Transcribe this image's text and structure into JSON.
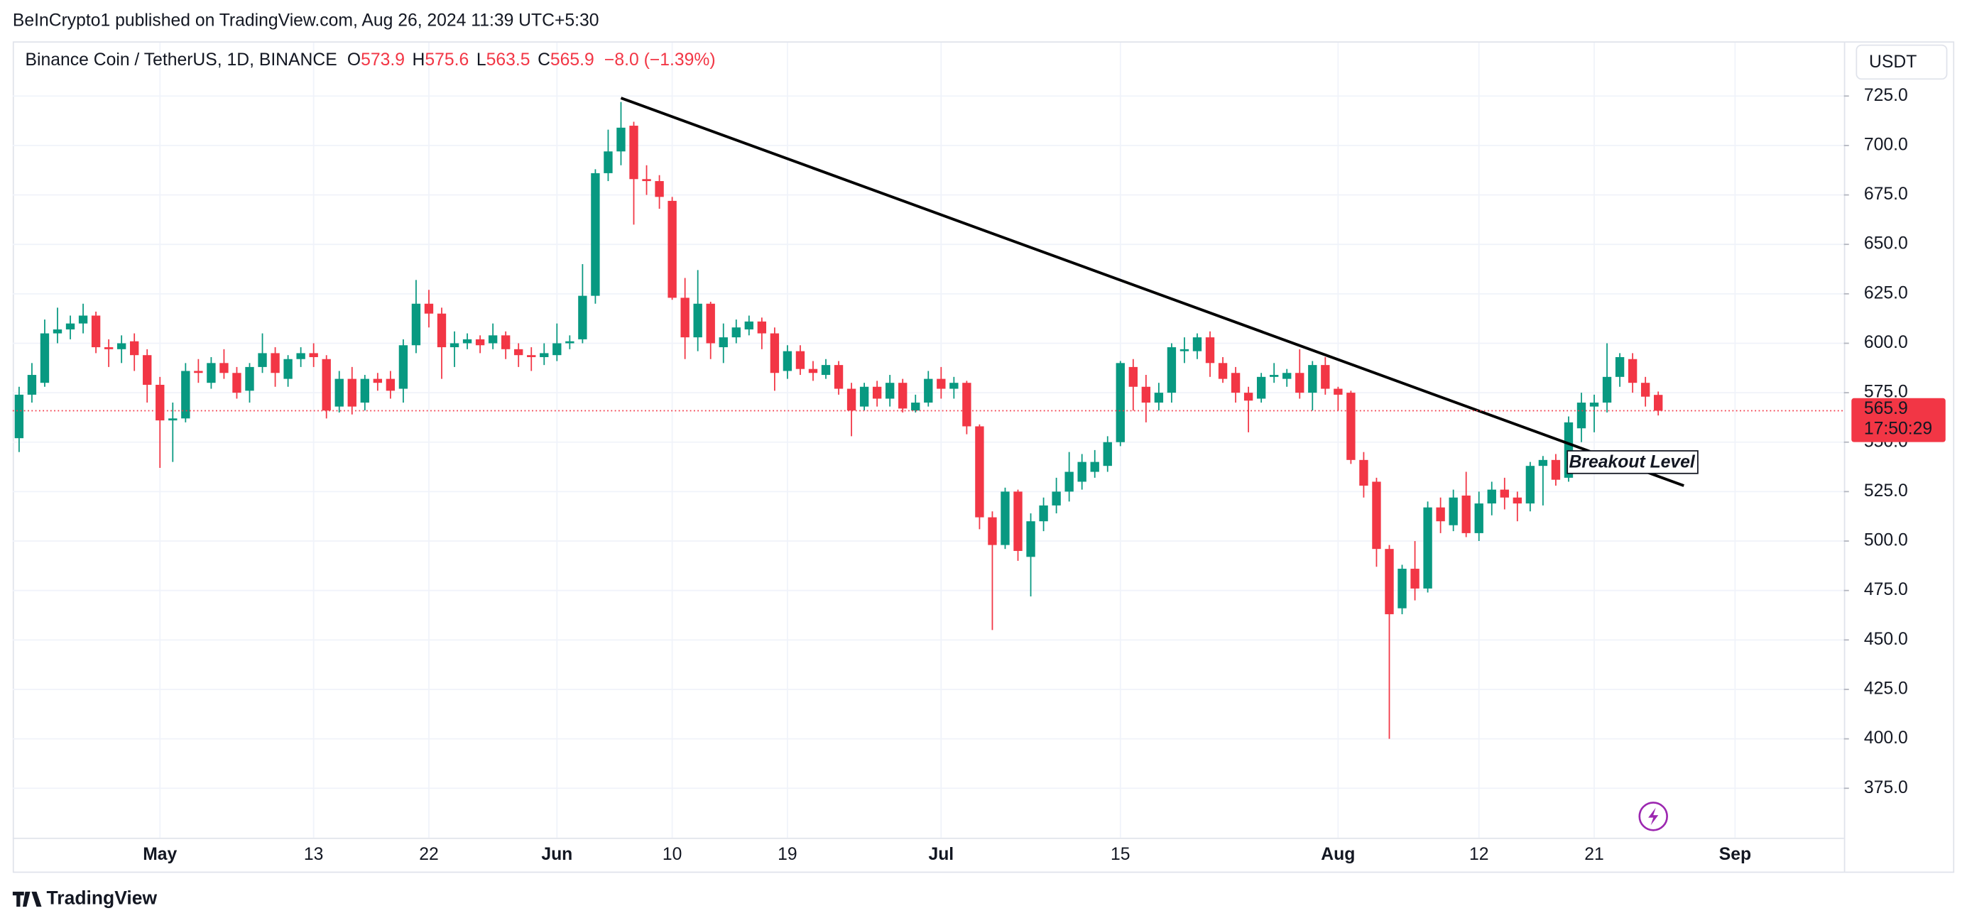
{
  "header": {
    "published": "BeInCrypto1 published on TradingView.com, Aug 26, 2024 11:39 UTC+5:30",
    "currency": "USDT",
    "footer": "TradingView"
  },
  "chart_data": {
    "type": "candlestick",
    "title": "Binance Coin / TetherUS, 1D, BINANCE",
    "ohlc_labels": [
      "O",
      "H",
      "L",
      "C"
    ],
    "change": "−8.0 (−1.39%)",
    "countdown": "17:50:29",
    "up_color": "#089981",
    "down_color": "#f23645",
    "x": [
      "2024-04-20",
      "2024-04-21",
      "2024-04-22",
      "2024-04-23",
      "2024-04-24",
      "2024-04-25",
      "2024-04-26",
      "2024-04-27",
      "2024-04-28",
      "2024-04-29",
      "2024-04-30",
      "2024-05-01",
      "2024-05-02",
      "2024-05-03",
      "2024-05-04",
      "2024-05-05",
      "2024-05-06",
      "2024-05-07",
      "2024-05-08",
      "2024-05-09",
      "2024-05-10",
      "2024-05-11",
      "2024-05-12",
      "2024-05-13",
      "2024-05-14",
      "2024-05-15",
      "2024-05-16",
      "2024-05-17",
      "2024-05-18",
      "2024-05-19",
      "2024-05-20",
      "2024-05-21",
      "2024-05-22",
      "2024-05-23",
      "2024-05-24",
      "2024-05-25",
      "2024-05-26",
      "2024-05-27",
      "2024-05-28",
      "2024-05-29",
      "2024-05-30",
      "2024-05-31",
      "2024-06-01",
      "2024-06-02",
      "2024-06-03",
      "2024-06-04",
      "2024-06-05",
      "2024-06-06",
      "2024-06-07",
      "2024-06-08",
      "2024-06-09",
      "2024-06-10",
      "2024-06-11",
      "2024-06-12",
      "2024-06-13",
      "2024-06-14",
      "2024-06-15",
      "2024-06-16",
      "2024-06-17",
      "2024-06-18",
      "2024-06-19",
      "2024-06-20",
      "2024-06-21",
      "2024-06-22",
      "2024-06-23",
      "2024-06-24",
      "2024-06-25",
      "2024-06-26",
      "2024-06-27",
      "2024-06-28",
      "2024-06-29",
      "2024-06-30",
      "2024-07-01",
      "2024-07-02",
      "2024-07-03",
      "2024-07-04",
      "2024-07-05",
      "2024-07-06",
      "2024-07-07",
      "2024-07-08",
      "2024-07-09",
      "2024-07-10",
      "2024-07-11",
      "2024-07-12",
      "2024-07-13",
      "2024-07-14",
      "2024-07-15",
      "2024-07-16",
      "2024-07-17",
      "2024-07-18",
      "2024-07-19",
      "2024-07-20",
      "2024-07-21",
      "2024-07-22",
      "2024-07-23",
      "2024-07-24",
      "2024-07-25",
      "2024-07-26",
      "2024-07-27",
      "2024-07-28",
      "2024-07-29",
      "2024-07-30",
      "2024-07-31",
      "2024-08-01",
      "2024-08-02",
      "2024-08-03",
      "2024-08-04",
      "2024-08-05",
      "2024-08-06",
      "2024-08-07",
      "2024-08-08",
      "2024-08-09",
      "2024-08-10",
      "2024-08-11",
      "2024-08-12",
      "2024-08-13",
      "2024-08-14",
      "2024-08-15",
      "2024-08-16",
      "2024-08-17",
      "2024-08-18",
      "2024-08-19",
      "2024-08-20",
      "2024-08-21",
      "2024-08-22",
      "2024-08-23",
      "2024-08-24",
      "2024-08-25",
      "2024-08-26"
    ],
    "open": [
      552,
      574,
      580,
      605,
      607,
      610,
      614,
      598,
      597,
      601,
      594,
      579,
      561,
      562,
      586,
      580,
      590,
      585,
      576,
      588,
      595,
      582,
      592,
      595,
      592,
      568,
      582,
      570,
      582,
      582,
      577,
      599,
      620,
      615,
      598,
      600,
      602,
      600,
      604,
      597,
      594,
      593,
      594,
      600,
      602,
      624,
      686,
      697,
      710,
      683,
      682,
      672,
      623,
      603,
      620,
      598,
      603,
      607,
      611,
      605,
      586,
      596,
      587,
      584,
      589,
      577,
      568,
      578,
      572,
      580,
      566,
      570,
      582,
      577,
      580,
      558,
      512,
      498,
      525,
      492,
      510,
      518,
      525,
      530,
      535,
      538,
      550,
      588,
      578,
      570,
      575,
      596,
      596,
      603,
      590,
      585,
      575,
      572,
      583,
      582,
      585,
      575,
      589,
      577,
      575,
      541,
      530,
      496,
      466,
      486,
      476,
      517,
      508,
      523,
      504,
      519,
      526,
      522,
      519,
      538,
      541,
      532,
      557,
      568,
      570,
      583,
      592,
      580,
      573.9
    ],
    "high": [
      578,
      590,
      612,
      618,
      614,
      620,
      616,
      602,
      604,
      605,
      597,
      583,
      570,
      590,
      592,
      593,
      597,
      588,
      590,
      605,
      598,
      594,
      598,
      600,
      594,
      586,
      588,
      584,
      585,
      586,
      602,
      632,
      627,
      618,
      606,
      605,
      604,
      610,
      606,
      600,
      598,
      600,
      610,
      604,
      640,
      688,
      708,
      722,
      712,
      690,
      685,
      674,
      633,
      637,
      621,
      610,
      612,
      614,
      613,
      608,
      599,
      599,
      591,
      592,
      591,
      580,
      580,
      581,
      584,
      582,
      574,
      586,
      588,
      583,
      581,
      559,
      515,
      527,
      526,
      514,
      522,
      532,
      545,
      544,
      546,
      553,
      591,
      592,
      584,
      580,
      600,
      603,
      605,
      606,
      593,
      588,
      578,
      585,
      590,
      587,
      597,
      591,
      593,
      578,
      576,
      545,
      532,
      498,
      488,
      500,
      520,
      522,
      526,
      535,
      525,
      530,
      532,
      525,
      540,
      543,
      544,
      563,
      575,
      574,
      600,
      595,
      595,
      583,
      575.6
    ],
    "low": [
      545,
      570,
      578,
      600,
      602,
      605,
      595,
      588,
      590,
      586,
      570,
      537,
      540,
      560,
      580,
      577,
      582,
      572,
      570,
      585,
      578,
      578,
      588,
      588,
      562,
      565,
      564,
      566,
      576,
      572,
      570,
      595,
      608,
      582,
      588,
      597,
      595,
      597,
      592,
      588,
      586,
      589,
      591,
      597,
      600,
      620,
      682,
      690,
      660,
      675,
      668,
      622,
      592,
      596,
      592,
      590,
      600,
      604,
      597,
      576,
      582,
      584,
      581,
      582,
      574,
      553,
      566,
      568,
      568,
      565,
      565,
      568,
      572,
      572,
      554,
      506,
      455,
      496,
      490,
      472,
      505,
      514,
      520,
      526,
      532,
      535,
      548,
      566,
      560,
      566,
      570,
      590,
      592,
      583,
      580,
      570,
      555,
      570,
      580,
      578,
      572,
      566,
      574,
      566,
      539,
      522,
      487,
      400,
      463,
      470,
      474,
      504,
      505,
      502,
      500,
      513,
      516,
      510,
      515,
      518,
      528,
      530,
      550,
      555,
      565,
      578,
      575,
      568,
      563.5
    ],
    "close": [
      574,
      584,
      605,
      607,
      610,
      614,
      598,
      597,
      600,
      594,
      579,
      561,
      562,
      586,
      585,
      590,
      585,
      575,
      588,
      595,
      585,
      592,
      595,
      593,
      566,
      582,
      568,
      582,
      580,
      576,
      599,
      620,
      615,
      598,
      600,
      602,
      599,
      604,
      597,
      594,
      593,
      595,
      600,
      601,
      624,
      686,
      697,
      709,
      683,
      682,
      674,
      623,
      603,
      620,
      600,
      603,
      608,
      611,
      605,
      585,
      596,
      587,
      585,
      589,
      577,
      566,
      578,
      572,
      580,
      567,
      570,
      582,
      577,
      580,
      558,
      512,
      498,
      525,
      495,
      510,
      518,
      525,
      535,
      540,
      540,
      550,
      590,
      578,
      570,
      575,
      598,
      597,
      603,
      590,
      582,
      575,
      571,
      583,
      584,
      585,
      575,
      589,
      577,
      574,
      541,
      528,
      496,
      463,
      486,
      476,
      517,
      510,
      522,
      504,
      519,
      526,
      522,
      519,
      538,
      541,
      531,
      560,
      570,
      570,
      583,
      593,
      580,
      573,
      565.9
    ],
    "xlim": [
      "2024-04-19T12:00Z",
      "2024-09-09T12:00Z"
    ],
    "xticks": [
      {
        "value": "2024-05-01",
        "label": "May"
      },
      {
        "value": "2024-05-13",
        "label": "13"
      },
      {
        "value": "2024-05-22",
        "label": "22"
      },
      {
        "value": "2024-06-01",
        "label": "Jun"
      },
      {
        "value": "2024-06-10",
        "label": "10"
      },
      {
        "value": "2024-06-19",
        "label": "19"
      },
      {
        "value": "2024-07-01",
        "label": "Jul"
      },
      {
        "value": "2024-07-15",
        "label": "15"
      },
      {
        "value": "2024-08-01",
        "label": "Aug"
      },
      {
        "value": "2024-08-12",
        "label": "12"
      },
      {
        "value": "2024-08-21",
        "label": "21"
      },
      {
        "value": "2024-09-01",
        "label": "Sep"
      }
    ],
    "ylim": [
      350,
      752
    ],
    "yticks": [
      {
        "value": 375,
        "label": "375.0"
      },
      {
        "value": 400,
        "label": "400.0"
      },
      {
        "value": 425,
        "label": "425.0"
      },
      {
        "value": 450,
        "label": "450.0"
      },
      {
        "value": 475,
        "label": "475.0"
      },
      {
        "value": 500,
        "label": "500.0"
      },
      {
        "value": 525,
        "label": "525.0"
      },
      {
        "value": 550,
        "label": "550.0"
      },
      {
        "value": 575,
        "label": "575.0"
      },
      {
        "value": 600,
        "label": "600.0"
      },
      {
        "value": 625,
        "label": "625.0"
      },
      {
        "value": 650,
        "label": "650.0"
      },
      {
        "value": 675,
        "label": "675.0"
      },
      {
        "value": 700,
        "label": "700.0"
      },
      {
        "value": 725,
        "label": "725.0"
      }
    ],
    "grid": true,
    "trendline": {
      "x": [
        "2024-06-06",
        "2024-08-28"
      ],
      "y": [
        724,
        528
      ],
      "color": "#000000"
    },
    "annotation": "Breakout Level"
  }
}
